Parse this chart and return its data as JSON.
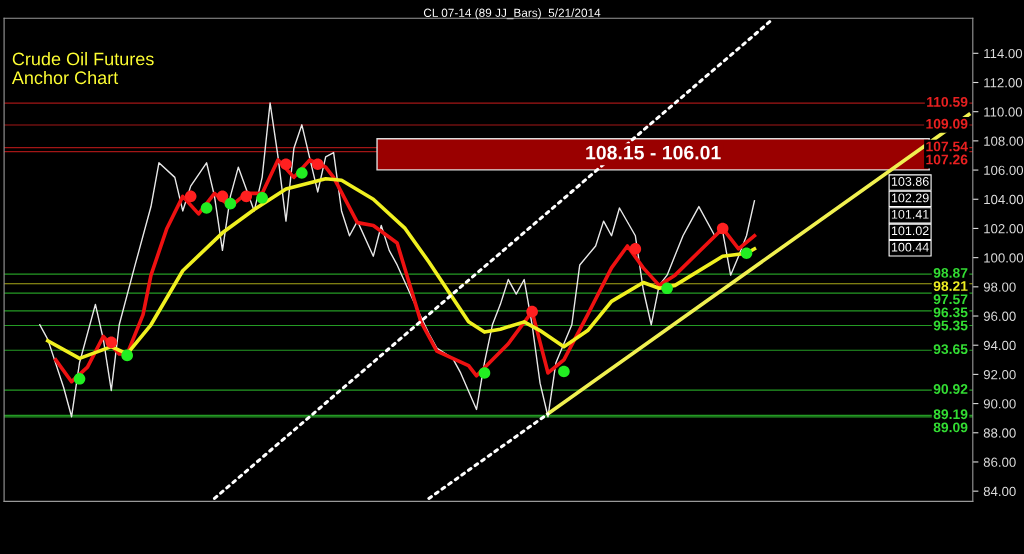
{
  "chart_data": {
    "type": "line",
    "title": "CL 07-14 (89 JJ_Bars)  5/21/2014",
    "subtitle": "Crude Oil Futures\nAnchor Chart",
    "categories": [
      null,
      null,
      null,
      null,
      null,
      null,
      null,
      null,
      null,
      null,
      null,
      null,
      null,
      null,
      null,
      null,
      null,
      null,
      null,
      null,
      null,
      null,
      null,
      null,
      null,
      null,
      null,
      null,
      null,
      null,
      null,
      null,
      null,
      null,
      null,
      null,
      null,
      null,
      null,
      null,
      null,
      null,
      null,
      null,
      null,
      null,
      null,
      null,
      null,
      null,
      null,
      null,
      null,
      null,
      null,
      null,
      null,
      null,
      null,
      null,
      null,
      null,
      null,
      null,
      null,
      null,
      null,
      null,
      null,
      null,
      null,
      null,
      null,
      null,
      null,
      null,
      null,
      null,
      null,
      null,
      null,
      null,
      null,
      null,
      null,
      null,
      null,
      null,
      null,
      null,
      null,
      null,
      null,
      null,
      null,
      null,
      null,
      null,
      null,
      null,
      null,
      null,
      null,
      null,
      null,
      null,
      null,
      null,
      null,
      null,
      null,
      null,
      null,
      null,
      null,
      null,
      null,
      null,
      null,
      null,
      null,
      null
    ],
    "ylim": [
      83.3,
      116.4
    ],
    "yticks": [
      {
        "value": 84,
        "label": "84.00"
      },
      {
        "value": 86,
        "label": "86.00"
      },
      {
        "value": 88,
        "label": "88.00"
      },
      {
        "value": 90,
        "label": "90.00"
      },
      {
        "value": 92,
        "label": "92.00"
      },
      {
        "value": 94,
        "label": "94.00"
      },
      {
        "value": 96,
        "label": "96.00"
      },
      {
        "value": 98,
        "label": "98.00"
      },
      {
        "value": 100,
        "label": "100.00"
      },
      {
        "value": 102,
        "label": "102.00"
      },
      {
        "value": 104,
        "label": "104.00"
      },
      {
        "value": 106,
        "label": "106.00"
      },
      {
        "value": 108,
        "label": "108.00"
      },
      {
        "value": 110,
        "label": "110.00"
      },
      {
        "value": 112,
        "label": "112.00"
      },
      {
        "value": 114,
        "label": "114.00"
      }
    ],
    "tick_labels": "y",
    "grid": false,
    "series": [
      {
        "type": "line",
        "color": "#e8e8e8",
        "line_style": "solid",
        "values": [
          null,
          null,
          null,
          null,
          95.4,
          94.4,
          null,
          91.1,
          89.1,
          92.8,
          null,
          96.8,
          94.4,
          90.9,
          95.4,
          null,
          99.5,
          null,
          103.5,
          106.5,
          null,
          105.5,
          103.2,
          104.9,
          null,
          106.5,
          104.2,
          100.5,
          104.2,
          106.2,
          null,
          103.2,
          105.5,
          110.6,
          106.9,
          102.5,
          107.5,
          109.1,
          null,
          104.5,
          106.9,
          107.2,
          103.2,
          101.5,
          102.5,
          null,
          100.1,
          102.2,
          100.5,
          99.5,
          null,
          97.1,
          null,
          94.8,
          93.8,
          null,
          93.1,
          92.1,
          null,
          89.6,
          92.8,
          95.4,
          96.8,
          98.5,
          97.5,
          98.5,
          95.4,
          91.4,
          89.1,
          92.8,
          null,
          95.4,
          99.5,
          null,
          100.8,
          102.5,
          101.5,
          103.4,
          null,
          101.5,
          97.8,
          95.4,
          98.1,
          98.8,
          null,
          101.5,
          102.5,
          103.5,
          null,
          101.5,
          101.8,
          98.8,
          100.1,
          101.5,
          103.9,
          null,
          null,
          null,
          null,
          null,
          null,
          null,
          null,
          null,
          null,
          null,
          null,
          null,
          null,
          null,
          null,
          null,
          null,
          null,
          null,
          null,
          null,
          null,
          null,
          null,
          null,
          null
        ]
      },
      {
        "type": "line",
        "color": "#ee1111",
        "line_style": "solid",
        "values": [
          null,
          null,
          null,
          null,
          null,
          null,
          93.0,
          null,
          91.5,
          null,
          92.5,
          null,
          94.6,
          null,
          93.4,
          93.4,
          null,
          96.1,
          98.8,
          null,
          102.0,
          null,
          104.2,
          null,
          103.0,
          null,
          104.4,
          null,
          103.5,
          null,
          104.4,
          null,
          104.4,
          null,
          106.7,
          null,
          105.5,
          null,
          106.7,
          null,
          106.2,
          105.5,
          null,
          null,
          102.4,
          null,
          102.2,
          null,
          null,
          101.0,
          null,
          null,
          95.6,
          null,
          93.6,
          null,
          null,
          null,
          92.6,
          91.9,
          null,
          93.0,
          null,
          94.1,
          null,
          null,
          96.3,
          null,
          92.1,
          null,
          93.0,
          null,
          null,
          96.1,
          null,
          null,
          99.3,
          null,
          100.8,
          null,
          99.3,
          null,
          98.1,
          null,
          98.8,
          null,
          null,
          null,
          null,
          null,
          102.0,
          null,
          100.6,
          null,
          101.5,
          null,
          null,
          null,
          null,
          null,
          null,
          null,
          null,
          null,
          null,
          null,
          null,
          null,
          null,
          null,
          null,
          null,
          null,
          null,
          null,
          null,
          null,
          null,
          null,
          null,
          null,
          null
        ]
      },
      {
        "type": "line",
        "color": "#f0f020",
        "line_style": "solid",
        "values": [
          null,
          null,
          null,
          null,
          null,
          94.3,
          null,
          null,
          null,
          93.1,
          null,
          null,
          null,
          93.9,
          null,
          93.4,
          null,
          null,
          95.4,
          null,
          null,
          null,
          99.1,
          null,
          null,
          null,
          null,
          101.7,
          null,
          null,
          null,
          103.3,
          null,
          null,
          null,
          104.7,
          null,
          null,
          null,
          null,
          105.4,
          null,
          105.3,
          null,
          null,
          null,
          104.0,
          null,
          null,
          null,
          102.0,
          null,
          null,
          99.7,
          null,
          null,
          null,
          null,
          95.6,
          null,
          94.9,
          null,
          95.1,
          null,
          null,
          95.6,
          null,
          95.0,
          null,
          null,
          93.9,
          null,
          null,
          95.0,
          null,
          null,
          97.0,
          null,
          null,
          null,
          98.3,
          null,
          97.9,
          null,
          98.1,
          null,
          null,
          null,
          null,
          null,
          100.1,
          null,
          null,
          100.3,
          100.6,
          null,
          null,
          null,
          null,
          null,
          null,
          null,
          null,
          null,
          null,
          null,
          null,
          null,
          null,
          null,
          null,
          null,
          null,
          null,
          null,
          null,
          null,
          null,
          null,
          null,
          null,
          null
        ]
      },
      {
        "type": "scatter",
        "color": "#ff2020",
        "marker": "circle",
        "values": [
          null,
          null,
          null,
          null,
          null,
          null,
          null,
          null,
          null,
          null,
          null,
          null,
          null,
          94.2,
          null,
          null,
          null,
          null,
          null,
          null,
          null,
          null,
          null,
          104.2,
          null,
          null,
          null,
          104.2,
          null,
          null,
          104.2,
          null,
          null,
          null,
          null,
          106.4,
          null,
          null,
          null,
          106.4,
          null,
          null,
          null,
          null,
          null,
          null,
          null,
          null,
          null,
          null,
          null,
          null,
          null,
          null,
          null,
          null,
          null,
          null,
          null,
          null,
          null,
          null,
          null,
          null,
          null,
          null,
          96.3,
          null,
          null,
          null,
          null,
          null,
          null,
          null,
          null,
          null,
          null,
          null,
          null,
          100.6,
          null,
          null,
          null,
          null,
          null,
          null,
          null,
          null,
          null,
          null,
          102.0,
          null,
          null,
          null,
          null,
          null,
          null,
          null,
          null,
          null,
          null,
          null,
          null,
          null,
          null,
          null,
          null,
          null,
          null,
          null,
          null,
          null,
          null,
          null,
          null,
          null,
          null,
          null,
          null,
          null,
          null,
          null
        ]
      },
      {
        "type": "scatter",
        "color": "#22ee22",
        "marker": "circle",
        "values": [
          null,
          null,
          null,
          null,
          null,
          null,
          null,
          null,
          null,
          91.7,
          null,
          null,
          null,
          null,
          null,
          93.3,
          null,
          null,
          null,
          null,
          null,
          null,
          null,
          null,
          null,
          103.4,
          null,
          null,
          103.7,
          null,
          null,
          null,
          104.1,
          null,
          null,
          null,
          null,
          105.8,
          null,
          null,
          null,
          null,
          null,
          null,
          null,
          null,
          null,
          null,
          null,
          null,
          null,
          null,
          null,
          null,
          null,
          null,
          null,
          null,
          null,
          null,
          92.1,
          null,
          null,
          null,
          null,
          null,
          null,
          null,
          null,
          null,
          92.2,
          null,
          null,
          null,
          null,
          null,
          null,
          null,
          null,
          null,
          null,
          null,
          null,
          97.9,
          null,
          null,
          null,
          null,
          null,
          null,
          null,
          null,
          null,
          100.3,
          null,
          null,
          null,
          null,
          null,
          null,
          null,
          null,
          null,
          null,
          null,
          null,
          null,
          null,
          null,
          null,
          null,
          null,
          null,
          null,
          null,
          null,
          null,
          null,
          null,
          null,
          null,
          null
        ]
      },
      {
        "type": "line",
        "color": "#f0f050",
        "line_style": "solid",
        "values": [
          null,
          null,
          null,
          null,
          null,
          null,
          null,
          null,
          null,
          null,
          null,
          null,
          null,
          null,
          null,
          null,
          null,
          null,
          null,
          null,
          null,
          null,
          null,
          null,
          null,
          null,
          null,
          null,
          null,
          null,
          null,
          null,
          null,
          null,
          null,
          null,
          null,
          null,
          null,
          null,
          null,
          null,
          null,
          null,
          null,
          null,
          null,
          null,
          null,
          null,
          null,
          null,
          null,
          null,
          null,
          null,
          null,
          null,
          null,
          null,
          null,
          null,
          null,
          null,
          null,
          null,
          null,
          null,
          89.3,
          null,
          null,
          null,
          null,
          null,
          null,
          null,
          null,
          null,
          null,
          null,
          null,
          null,
          null,
          null,
          null,
          null,
          null,
          null,
          null,
          null,
          null,
          null,
          null,
          null,
          null,
          null,
          null,
          null,
          null,
          null,
          null,
          null,
          null,
          null,
          null,
          null,
          null,
          null,
          null,
          null,
          null,
          null,
          null,
          null,
          null,
          null,
          null,
          null,
          null,
          null,
          null,
          109.8
        ]
      },
      {
        "type": "line",
        "color": "#ffffff",
        "line_style": "dotted",
        "values": [
          null,
          null,
          null,
          null,
          null,
          null,
          null,
          null,
          null,
          null,
          null,
          null,
          null,
          null,
          null,
          null,
          null,
          null,
          null,
          null,
          null,
          null,
          null,
          null,
          null,
          null,
          83.5,
          null,
          null,
          null,
          null,
          null,
          null,
          null,
          null,
          null,
          null,
          null,
          null,
          null,
          null,
          null,
          null,
          null,
          null,
          null,
          null,
          null,
          null,
          null,
          null,
          null,
          null,
          null,
          null,
          null,
          null,
          null,
          null,
          null,
          null,
          null,
          null,
          null,
          null,
          null,
          null,
          null,
          null,
          null,
          null,
          null,
          null,
          null,
          null,
          null,
          null,
          null,
          null,
          null,
          null,
          null,
          null,
          null,
          null,
          null,
          null,
          null,
          null,
          null,
          null,
          null,
          null,
          null,
          null,
          null,
          116.2,
          null,
          null,
          null,
          null,
          null,
          null,
          null,
          null,
          null,
          null,
          null,
          null,
          null,
          null,
          null,
          null,
          null,
          null,
          null,
          null,
          null,
          null,
          null,
          null,
          null
        ]
      },
      {
        "type": "line",
        "color": "#ffffff",
        "line_style": "dotted",
        "values": [
          null,
          null,
          null,
          null,
          null,
          null,
          null,
          null,
          null,
          null,
          null,
          null,
          null,
          null,
          null,
          null,
          null,
          null,
          null,
          null,
          null,
          null,
          null,
          null,
          null,
          null,
          null,
          null,
          null,
          null,
          null,
          null,
          null,
          null,
          null,
          null,
          null,
          null,
          null,
          null,
          null,
          null,
          null,
          null,
          null,
          null,
          null,
          null,
          null,
          null,
          null,
          null,
          null,
          83.5,
          null,
          null,
          null,
          null,
          null,
          null,
          null,
          null,
          null,
          null,
          null,
          null,
          null,
          null,
          89.3,
          null,
          null,
          null,
          null,
          null,
          null,
          null,
          null,
          null,
          null,
          null,
          null,
          null,
          null,
          null,
          null,
          null,
          null,
          null,
          null,
          null,
          null,
          null,
          null,
          null,
          null,
          null,
          null,
          null,
          null,
          null,
          null,
          null,
          null,
          null,
          null,
          null,
          null,
          null,
          null,
          null,
          null,
          null,
          null,
          null,
          null,
          null,
          null,
          null,
          null,
          null,
          null,
          null
        ]
      }
    ],
    "bands": [
      {
        "axis": "y",
        "from": 106.01,
        "to": 108.15,
        "label": "108.15 - 106.01",
        "color": "#9a0000"
      }
    ],
    "ref_lines": [
      {
        "axis": "y",
        "value": 110.59,
        "label": "110.59",
        "color": "#e82020"
      },
      {
        "axis": "y",
        "value": 109.09,
        "label": "109.09",
        "color": "#e82020"
      },
      {
        "axis": "y",
        "value": 107.54,
        "label": "107.54",
        "color": "#e82020"
      },
      {
        "axis": "y",
        "value": 107.26,
        "label": "107.26",
        "color": "#e82020"
      },
      {
        "axis": "y",
        "value": 98.87,
        "label": "98.87",
        "color": "#33dd33"
      },
      {
        "axis": "y",
        "value": 98.21,
        "label": "98.21",
        "color": "#eeee22"
      },
      {
        "axis": "y",
        "value": 97.57,
        "label": "97.57",
        "color": "#33dd33"
      },
      {
        "axis": "y",
        "value": 96.35,
        "label": "96.35",
        "color": "#33dd33"
      },
      {
        "axis": "y",
        "value": 95.35,
        "label": "95.35",
        "color": "#33dd33"
      },
      {
        "axis": "y",
        "value": 93.65,
        "label": "93.65",
        "color": "#33dd33"
      },
      {
        "axis": "y",
        "value": 90.92,
        "label": "90.92",
        "color": "#33dd33"
      },
      {
        "axis": "y",
        "value": 89.19,
        "label": "89.19",
        "color": "#33dd33"
      },
      {
        "axis": "y",
        "value": 89.09,
        "label": "89.09",
        "color": "#33dd33"
      }
    ],
    "annotations": [
      "103.86",
      "102.29",
      "101.41",
      "101.02",
      "100.44"
    ]
  }
}
